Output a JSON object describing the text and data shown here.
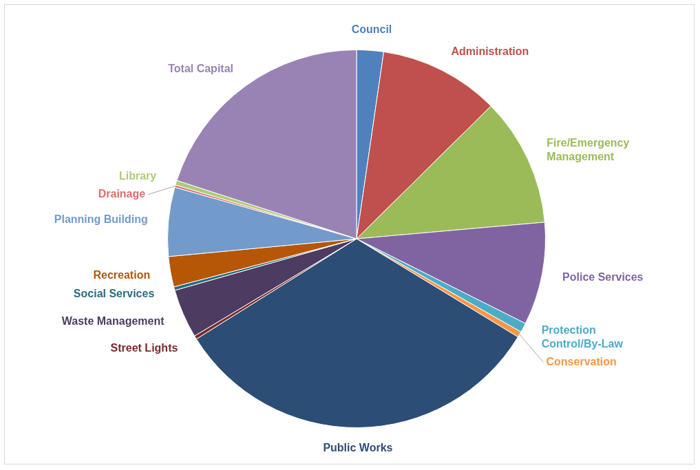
{
  "chart_data": {
    "type": "pie",
    "categories": [
      "Council",
      "Administration",
      "Fire/Emergency Management",
      "Police Services",
      "Protection Control/By-Law",
      "Conservation",
      "Public Works",
      "Street Lights",
      "Waste Management",
      "Social Services",
      "Recreation",
      "Planning Building",
      "Drainage",
      "Library",
      "Total Capital"
    ],
    "values": [
      2.3,
      10.3,
      11.0,
      8.8,
      0.8,
      0.5,
      32.4,
      0.3,
      4.2,
      0.3,
      2.6,
      5.9,
      0.2,
      0.4,
      20.0
    ],
    "colors": [
      "#4f81bd",
      "#c0504d",
      "#9bbb59",
      "#8064a2",
      "#4bacc6",
      "#f79646",
      "#2c4d75",
      "#772c2a",
      "#4d3b62",
      "#276a7c",
      "#b65708",
      "#729aca",
      "#d9706d",
      "#afcb79",
      "#9983b5"
    ],
    "legend": false
  }
}
